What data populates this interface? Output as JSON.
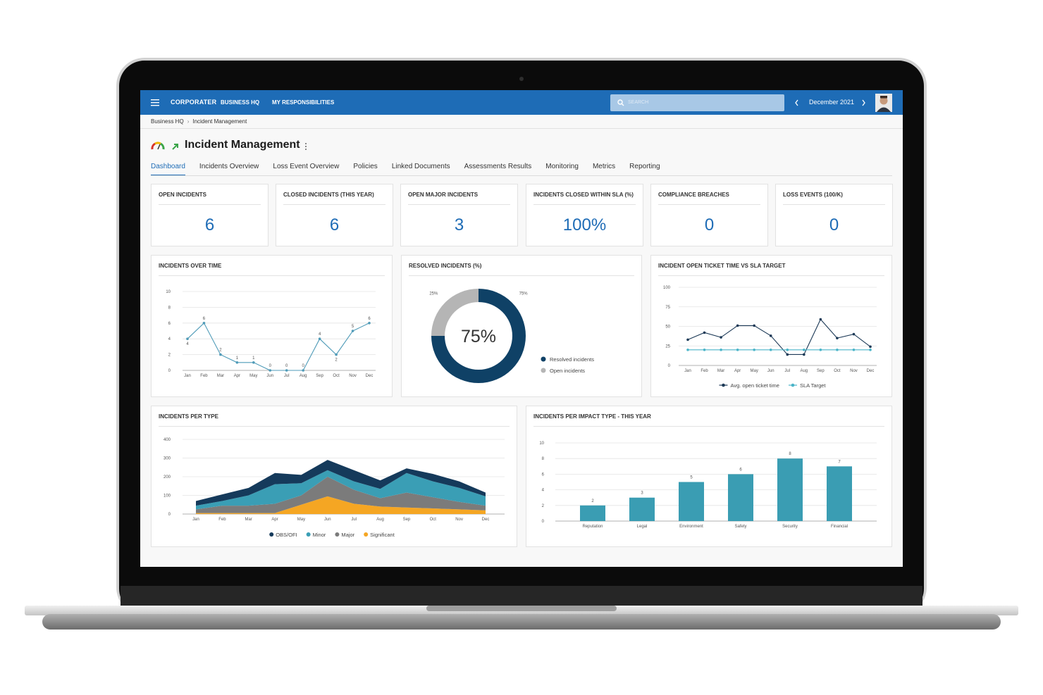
{
  "header": {
    "logo": "CORPORATER",
    "nav": [
      "BUSINESS HQ",
      "MY RESPONSIBILITIES"
    ],
    "search_placeholder": "SEARCH",
    "period": "December 2021"
  },
  "breadcrumb": [
    "Business HQ",
    "Incident Management"
  ],
  "page_title": "Incident Management",
  "tabs": [
    "Dashboard",
    "Incidents Overview",
    "Loss Event Overview",
    "Policies",
    "Linked Documents",
    "Assessments Results",
    "Monitoring",
    "Metrics",
    "Reporting"
  ],
  "active_tab": 0,
  "kpis": [
    {
      "title": "OPEN INCIDENTS",
      "value": 6
    },
    {
      "title": "CLOSED INCIDENTS (THIS YEAR)",
      "value": 6
    },
    {
      "title": "OPEN MAJOR INCIDENTS",
      "value": 3
    },
    {
      "title": "INCIDENTS CLOSED WITHIN SLA (%)",
      "value": 100,
      "value_label": "100%"
    },
    {
      "title": "COMPLIANCE BREACHES",
      "value": 0
    },
    {
      "title": "LOSS EVENTS (100/K)",
      "value": 0
    }
  ],
  "chart_data": [
    {
      "type": "line",
      "title": "INCIDENTS OVER TIME",
      "categories": [
        "Jan",
        "Feb",
        "Mar",
        "Apr",
        "May",
        "Jun",
        "Jul",
        "Aug",
        "Sep",
        "Oct",
        "Nov",
        "Dec"
      ],
      "values": [
        4,
        6,
        2,
        1,
        1,
        0,
        0,
        0,
        4,
        2,
        5,
        6
      ],
      "color": "#4f9bb8",
      "ylim": [
        0,
        10
      ],
      "yticks": [
        0,
        2,
        4,
        6,
        8,
        10
      ],
      "grid": true,
      "data_labels": true
    },
    {
      "type": "donut",
      "title": "RESOLVED INCIDENTS (%)",
      "categories": [
        "Resolved incidents",
        "Open incidents"
      ],
      "values": [
        75,
        25
      ],
      "value_labels": [
        "75%",
        "25%"
      ],
      "colors": [
        "#0f4166",
        "#b5b5b5"
      ],
      "legend": "right"
    },
    {
      "type": "line",
      "title": "INCIDENT OPEN TICKET TIME VS SLA TARGET",
      "categories": [
        "Jan",
        "Feb",
        "Mar",
        "Apr",
        "May",
        "Jun",
        "Jul",
        "Aug",
        "Sep",
        "Oct",
        "Nov",
        "Dec"
      ],
      "series": [
        {
          "name": "Avg. open ticket time",
          "color": "#1d3a57",
          "values": [
            33,
            42,
            36,
            51,
            51,
            38,
            14,
            14,
            59,
            35,
            40,
            24
          ]
        },
        {
          "name": "SLA Target",
          "color": "#4ab4c8",
          "values": [
            20,
            20,
            20,
            20,
            20,
            20,
            20,
            20,
            20,
            20,
            20,
            20
          ]
        }
      ],
      "ylim": [
        0,
        100
      ],
      "yticks": [
        0,
        25,
        50,
        75,
        100
      ],
      "grid": true,
      "legend": "bottom"
    },
    {
      "type": "stacked_area",
      "title": "INCIDENTS PER TYPE",
      "categories": [
        "Jan",
        "Feb",
        "Mar",
        "Apr",
        "May",
        "Jun",
        "Jul",
        "Aug",
        "Sep",
        "Oct",
        "Nov",
        "Dec"
      ],
      "series": [
        {
          "name": "OBS/OFI",
          "color": "#153a5b",
          "values": [
            25,
            35,
            40,
            60,
            45,
            55,
            60,
            45,
            25,
            40,
            35,
            20
          ]
        },
        {
          "name": "Minor",
          "color": "#3a9eb5",
          "values": [
            20,
            25,
            55,
            105,
            65,
            35,
            45,
            50,
            105,
            85,
            75,
            50
          ]
        },
        {
          "name": "Major",
          "color": "#7b7b7b",
          "values": [
            20,
            40,
            40,
            50,
            50,
            105,
            75,
            45,
            80,
            60,
            40,
            25
          ]
        },
        {
          "name": "Significant",
          "color": "#f5a623",
          "values": [
            5,
            5,
            5,
            5,
            50,
            95,
            55,
            40,
            35,
            30,
            25,
            20
          ]
        }
      ],
      "ylim": [
        0,
        400
      ],
      "yticks": [
        0,
        100,
        200,
        300,
        400
      ],
      "grid": true,
      "legend": "bottom"
    },
    {
      "type": "bar",
      "title": "INCIDENTS PER IMPACT TYPE - THIS YEAR",
      "categories": [
        "Reputation",
        "Legal",
        "Environment",
        "Safety",
        "Security",
        "Financial"
      ],
      "values": [
        2,
        3,
        5,
        6,
        8,
        7
      ],
      "color": "#3a9db3",
      "ylim": [
        0,
        10
      ],
      "yticks": [
        0,
        2,
        4,
        6,
        8,
        10
      ],
      "grid": true,
      "data_labels": true
    }
  ]
}
